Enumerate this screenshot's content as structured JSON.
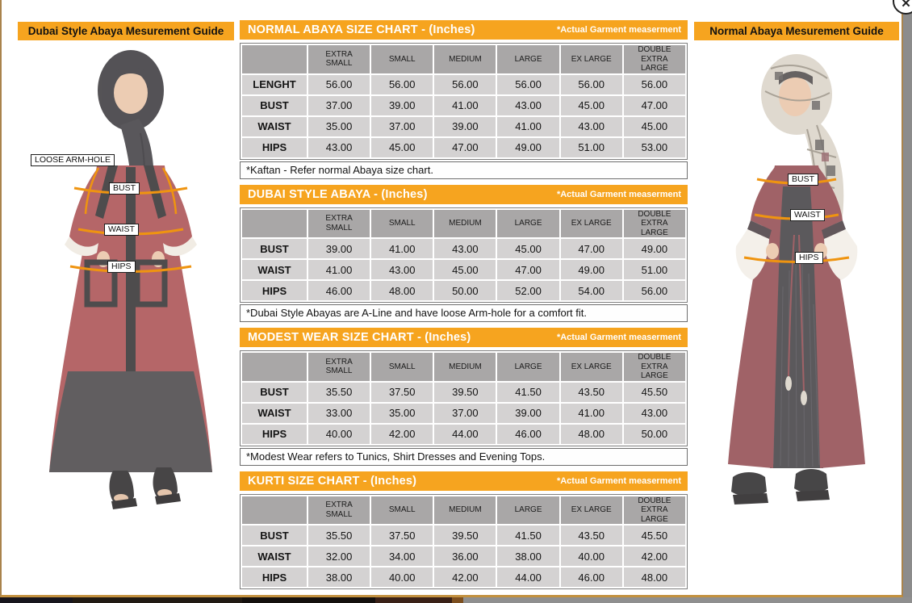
{
  "overlay": {
    "close_icon": "✕"
  },
  "left_panel": {
    "title": "Dubai Style Abaya Mesurement Guide",
    "labels": {
      "arm_hole": "LOOSE ARM-HOLE",
      "bust": "BUST",
      "waist": "WAIST",
      "hips": "HIPS"
    }
  },
  "right_panel": {
    "title": "Normal Abaya Mesurement Guide",
    "labels": {
      "bust": "BUST",
      "waist": "WAIST",
      "hips": "HIPS"
    }
  },
  "size_columns": [
    "EXTRA SMALL",
    "SMALL",
    "MEDIUM",
    "LARGE",
    "EX LARGE",
    "DOUBLE EXTRA LARGE"
  ],
  "tables": [
    {
      "title": "NORMAL ABAYA SIZE CHART - (Inches)",
      "corner_note": "*Actual Garment measerment",
      "rows": [
        {
          "label": "LENGHT",
          "values": [
            "56.00",
            "56.00",
            "56.00",
            "56.00",
            "56.00",
            "56.00"
          ]
        },
        {
          "label": "BUST",
          "values": [
            "37.00",
            "39.00",
            "41.00",
            "43.00",
            "45.00",
            "47.00"
          ]
        },
        {
          "label": "WAIST",
          "values": [
            "35.00",
            "37.00",
            "39.00",
            "41.00",
            "43.00",
            "45.00"
          ]
        },
        {
          "label": "HIPS",
          "values": [
            "43.00",
            "45.00",
            "47.00",
            "49.00",
            "51.00",
            "53.00"
          ]
        }
      ],
      "footnote": "*Kaftan - Refer normal Abaya size chart."
    },
    {
      "title": "DUBAI STYLE ABAYA - (Inches)",
      "corner_note": "*Actual Garment measerment",
      "rows": [
        {
          "label": "BUST",
          "values": [
            "39.00",
            "41.00",
            "43.00",
            "45.00",
            "47.00",
            "49.00"
          ]
        },
        {
          "label": "WAIST",
          "values": [
            "41.00",
            "43.00",
            "45.00",
            "47.00",
            "49.00",
            "51.00"
          ]
        },
        {
          "label": "HIPS",
          "values": [
            "46.00",
            "48.00",
            "50.00",
            "52.00",
            "54.00",
            "56.00"
          ]
        }
      ],
      "footnote": "*Dubai Style Abayas are A-Line and have loose Arm-hole for a comfort fit."
    },
    {
      "title": "MODEST WEAR SIZE CHART - (Inches)",
      "corner_note": "*Actual Garment measerment",
      "rows": [
        {
          "label": "BUST",
          "values": [
            "35.50",
            "37.50",
            "39.50",
            "41.50",
            "43.50",
            "45.50"
          ]
        },
        {
          "label": "WAIST",
          "values": [
            "33.00",
            "35.00",
            "37.00",
            "39.00",
            "41.00",
            "43.00"
          ]
        },
        {
          "label": "HIPS",
          "values": [
            "40.00",
            "42.00",
            "44.00",
            "46.00",
            "48.00",
            "50.00"
          ]
        }
      ],
      "footnote": "*Modest Wear refers to Tunics, Shirt Dresses and Evening Tops."
    },
    {
      "title": "KURTI SIZE CHART - (Inches)",
      "corner_note": "*Actual Garment measerment",
      "rows": [
        {
          "label": "BUST",
          "values": [
            "35.50",
            "37.50",
            "39.50",
            "41.50",
            "43.50",
            "45.50"
          ]
        },
        {
          "label": "WAIST",
          "values": [
            "32.00",
            "34.00",
            "36.00",
            "38.00",
            "40.00",
            "42.00"
          ]
        },
        {
          "label": "HIPS",
          "values": [
            "38.00",
            "40.00",
            "42.00",
            "44.00",
            "46.00",
            "48.00"
          ]
        }
      ],
      "footnote": ""
    }
  ],
  "colors": {
    "accent_orange": "#f6a41f",
    "measure_line_orange": "#ef9410",
    "table_header_grey": "#a9a7a7",
    "table_cell_grey": "#d4d2d2",
    "modal_border_tan": "#a9834c",
    "page_background_grey": "#8c8c8c"
  }
}
